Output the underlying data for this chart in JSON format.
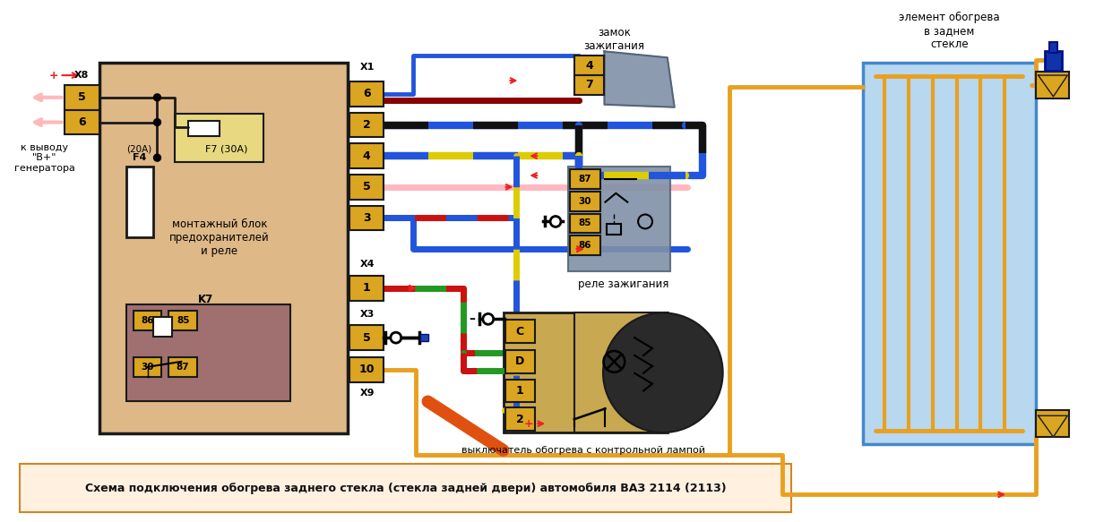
{
  "bg_color": "#FFFFFF",
  "main_box_color": "#DEB887",
  "main_box_border": "#1A1A1A",
  "connector_color": "#DAA520",
  "connector_border": "#1A1A1A",
  "relay_box_color": "#8090A8",
  "switch_box_color": "#C8A850",
  "glass_bg": "#B8D8F0",
  "glass_border": "#4488CC",
  "bottom_caption_bg": "#FFF0E0",
  "bottom_caption_border": "#CC8822",
  "bottom_caption_text": "Схема подключения обогрева заднего стекла (стекла задней двери) автомобиля ВАЗ 2114 (2113)",
  "title_zamok": "замок\nзажигания",
  "title_element": "элемент обогрева\nв заднем\nстекле",
  "title_rele": "реле зажигания",
  "title_vykluchatel": "выключатель обогрева с контрольной лампой",
  "title_montazh": "монтажный блок\nпредохранителей\nи реле",
  "title_generator": "к выводу\n\"В+\"\nгенератора",
  "orange_wire": "#E8A020",
  "blue_wire": "#2255DD",
  "dark_red_wire": "#880000",
  "black_wire": "#111111",
  "yellow_wire": "#DDCC00",
  "pink_wire": "#FFB8C0",
  "green_wire": "#229922",
  "red_arrow": "#EE2222",
  "k7_bg": "#A07070"
}
